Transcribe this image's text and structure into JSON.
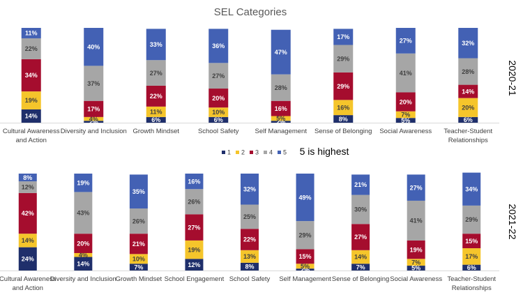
{
  "chart_data": [
    {
      "type": "bar",
      "stacked": "100%",
      "title": "SEL Categories",
      "year_label": "2020-21",
      "categories": [
        "Cultural Awareness and Action",
        "Diversity and Inclusion",
        "Growth Mindset",
        "School Safety",
        "Self Management",
        "Sense of Belonging",
        "Social Awareness",
        "Teacher-Student Relationships"
      ],
      "series": [
        {
          "name": "1",
          "color": "#1f2f6b",
          "values": [
            14,
            2,
            6,
            6,
            2,
            8,
            5,
            6
          ]
        },
        {
          "name": "2",
          "color": "#f5c52b",
          "values": [
            19,
            4,
            11,
            10,
            5,
            16,
            7,
            20
          ]
        },
        {
          "name": "3",
          "color": "#a50d2e",
          "values": [
            34,
            17,
            22,
            20,
            16,
            29,
            20,
            14
          ]
        },
        {
          "name": "4",
          "color": "#a6a6a6",
          "values": [
            22,
            37,
            27,
            27,
            28,
            29,
            41,
            28
          ]
        },
        {
          "name": "5",
          "color": "#4361b4",
          "values": [
            11,
            40,
            33,
            36,
            47,
            17,
            27,
            32
          ]
        }
      ],
      "ylim": [
        0,
        100
      ]
    },
    {
      "type": "bar",
      "stacked": "100%",
      "year_label": "2021-22",
      "categories": [
        "Cultural Awareness and Action",
        "Diversity and Inclusion",
        "Growth Mindset",
        "School Engagement",
        "School Safety",
        "Self Management",
        "Sense of Belonging",
        "Social Awareness",
        "Teacher-Student Relationships"
      ],
      "series": [
        {
          "name": "1",
          "color": "#1f2f6b",
          "values": [
            24,
            14,
            7,
            12,
            8,
            2,
            7,
            5,
            6
          ]
        },
        {
          "name": "2",
          "color": "#f5c52b",
          "values": [
            14,
            4,
            10,
            19,
            13,
            5,
            14,
            7,
            17
          ]
        },
        {
          "name": "3",
          "color": "#a50d2e",
          "values": [
            42,
            20,
            21,
            27,
            22,
            15,
            27,
            19,
            15
          ]
        },
        {
          "name": "4",
          "color": "#a6a6a6",
          "values": [
            12,
            43,
            26,
            26,
            25,
            29,
            30,
            41,
            29
          ]
        },
        {
          "name": "5",
          "color": "#4361b4",
          "values": [
            8,
            19,
            35,
            16,
            32,
            49,
            21,
            27,
            34
          ]
        }
      ],
      "ylim": [
        0,
        100
      ]
    }
  ],
  "legend": {
    "items": [
      "1",
      "2",
      "3",
      "4",
      "5"
    ],
    "note": "5 is highest"
  }
}
